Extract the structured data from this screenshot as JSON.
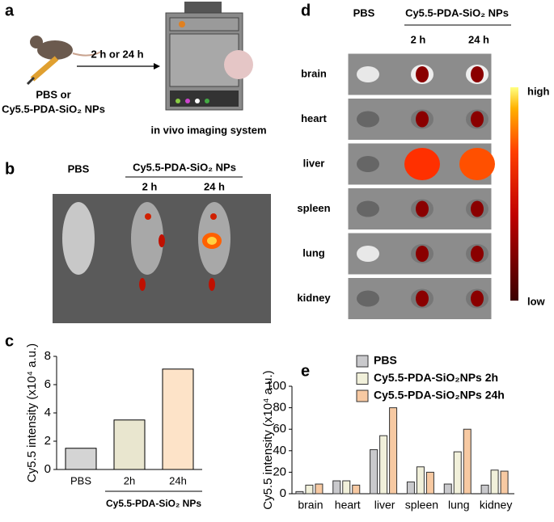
{
  "panels": {
    "a": {
      "label": "a",
      "arrow_label": "2 h or 24 h",
      "injection": [
        "PBS or",
        "Cy5.5-PDA-SiO₂ NPs"
      ],
      "system": "in vivo imaging system"
    },
    "b": {
      "label": "b",
      "control": "PBS",
      "group": "Cy5.5-PDA-SiO₂ NPs",
      "times": [
        "2 h",
        "24 h"
      ]
    },
    "d": {
      "label": "d",
      "control": "PBS",
      "group": "Cy5.5-PDA-SiO₂ NPs",
      "times": [
        "2 h",
        "24 h"
      ],
      "organs": [
        "brain",
        "heart",
        "liver",
        "spleen",
        "lung",
        "kidney"
      ],
      "scale_high": "high",
      "scale_low": "low"
    }
  },
  "chart_data": [
    {
      "type": "bar",
      "panel": "c",
      "ylabel": "Cy5.5 intensity (x10⁴ a.u.)",
      "categories": [
        "PBS",
        "2h",
        "24h"
      ],
      "group_label": "Cy5.5-PDA-SiO₂ NPs",
      "values": [
        1.5,
        3.5,
        7.1
      ],
      "colors": [
        "#d4d4d4",
        "#e9e6cf",
        "#fde3c8"
      ],
      "ylim": [
        0,
        8
      ],
      "yticks": [
        0,
        2,
        4,
        6,
        8
      ]
    },
    {
      "type": "grouped_bar",
      "panel": "e",
      "ylabel": "Cy5.5 intensity (x10⁴ a.u.)",
      "categories": [
        "brain",
        "heart",
        "liver",
        "spleen",
        "lung",
        "kidney"
      ],
      "series": [
        {
          "name": "PBS",
          "color": "#c9c9cc",
          "values": [
            2,
            12,
            41,
            11,
            9,
            8
          ]
        },
        {
          "name": "Cy5.5-PDA-SiO₂NPs 2h",
          "color": "#f1f0da",
          "values": [
            8,
            12,
            54,
            25,
            39,
            22
          ]
        },
        {
          "name": "Cy5.5-PDA-SiO₂NPs 24h",
          "color": "#f7c9a2",
          "values": [
            9,
            8,
            80,
            20,
            60,
            21
          ]
        }
      ],
      "ylim": [
        0,
        100
      ],
      "yticks": [
        0,
        20,
        40,
        60,
        80,
        100
      ],
      "legend": "top-right"
    }
  ]
}
